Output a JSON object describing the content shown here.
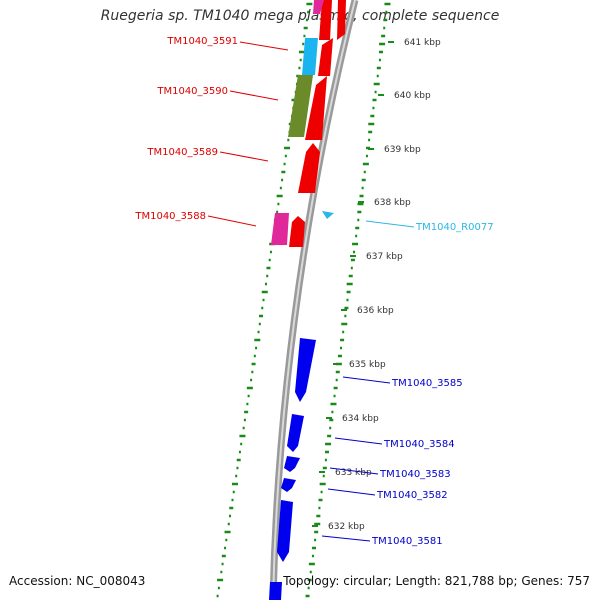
{
  "header": {
    "title": "Ruegeria sp. TM1040 mega plasmid, complete sequence"
  },
  "footer": {
    "accession": "Accession: NC_008043",
    "topology": "Topology: circular; Length: 821,788 bp; Genes: 757"
  },
  "colors": {
    "forward_cds": "#ee0000",
    "reverse_cds": "#0000ee",
    "rna": "#2ab7e6",
    "pink_feature": "#e0289a",
    "olive_feature": "#6b8b2a",
    "cyan_feature": "#1ab4f0",
    "gc_ticks": "#1a8a1a",
    "backbone": "#888888"
  },
  "ticks": [
    {
      "label": "641 kbp"
    },
    {
      "label": "640 kbp"
    },
    {
      "label": "639 kbp"
    },
    {
      "label": "638 kbp"
    },
    {
      "label": "637 kbp"
    },
    {
      "label": "636 kbp"
    },
    {
      "label": "635 kbp"
    },
    {
      "label": "634 kbp"
    },
    {
      "label": "633 kbp"
    },
    {
      "label": "632 kbp"
    }
  ],
  "labels": {
    "left": [
      {
        "text": "TM1040_3591",
        "color": "#dd0000"
      },
      {
        "text": "TM1040_3590",
        "color": "#dd0000"
      },
      {
        "text": "TM1040_3589",
        "color": "#dd0000"
      },
      {
        "text": "TM1040_3588",
        "color": "#dd0000"
      }
    ],
    "right": [
      {
        "text": "TM1040_R0077",
        "color": "#2ab7e6"
      },
      {
        "text": "TM1040_3585",
        "color": "#0000cc"
      },
      {
        "text": "TM1040_3584",
        "color": "#0000cc"
      },
      {
        "text": "TM1040_3583",
        "color": "#0000cc"
      },
      {
        "text": "TM1040_3582",
        "color": "#0000cc"
      },
      {
        "text": "TM1040_3581",
        "color": "#0000cc"
      }
    ]
  }
}
